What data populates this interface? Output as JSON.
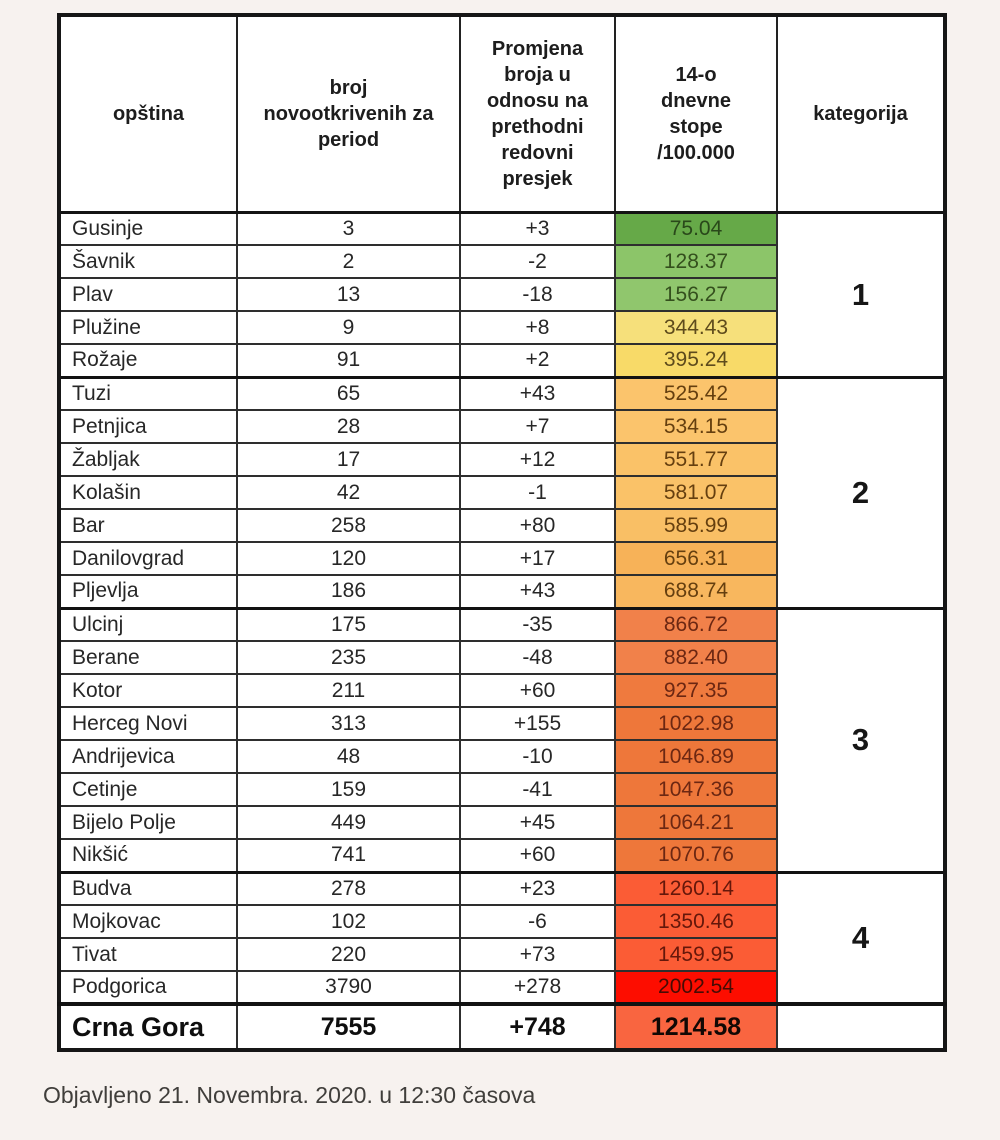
{
  "page": {
    "background": "#f7f2ef"
  },
  "chart_data": {
    "type": "table",
    "columns": [
      "opština",
      "broj\nnovootkrivenih za\nperiod",
      "Promjena\nbroja u\nodnosu na\nprethodni\nredovni\npresjek",
      "14-o\ndnevne\nstope\n/100.000",
      "kategorija"
    ],
    "groups": [
      {
        "kategorija": "1",
        "rows": [
          {
            "opstina": "Gusinje",
            "broj": "3",
            "promjena": "+3",
            "stopa": "75.04",
            "stopa_bg": "#66a948",
            "stopa_fg": "#29481a"
          },
          {
            "opstina": "Šavnik",
            "broj": "2",
            "promjena": "-2",
            "stopa": "128.37",
            "stopa_bg": "#8cc569",
            "stopa_fg": "#344f1d"
          },
          {
            "opstina": "Plav",
            "broj": "13",
            "promjena": "-18",
            "stopa": "156.27",
            "stopa_bg": "#90c66d",
            "stopa_fg": "#344f1d"
          },
          {
            "opstina": "Plužine",
            "broj": "9",
            "promjena": "+8",
            "stopa": "344.43",
            "stopa_bg": "#f6e07b",
            "stopa_fg": "#5e4b1c"
          },
          {
            "opstina": "Rožaje",
            "broj": "91",
            "promjena": "+2",
            "stopa": "395.24",
            "stopa_bg": "#f8da68",
            "stopa_fg": "#5e4b1c"
          }
        ]
      },
      {
        "kategorija": "2",
        "rows": [
          {
            "opstina": "Tuzi",
            "broj": "65",
            "promjena": "+43",
            "stopa": "525.42",
            "stopa_bg": "#fbc46c",
            "stopa_fg": "#653f0f"
          },
          {
            "opstina": "Petnjica",
            "broj": "28",
            "promjena": "+7",
            "stopa": "534.15",
            "stopa_bg": "#fbc46c",
            "stopa_fg": "#653f0f"
          },
          {
            "opstina": "Žabljak",
            "broj": "17",
            "promjena": "+12",
            "stopa": "551.77",
            "stopa_bg": "#fac268",
            "stopa_fg": "#653f0f"
          },
          {
            "opstina": "Kolašin",
            "broj": "42",
            "promjena": "-1",
            "stopa": "581.07",
            "stopa_bg": "#fac268",
            "stopa_fg": "#653f0f"
          },
          {
            "opstina": "Bar",
            "broj": "258",
            "promjena": "+80",
            "stopa": "585.99",
            "stopa_bg": "#f9bf65",
            "stopa_fg": "#653f0f"
          },
          {
            "opstina": "Danilovgrad",
            "broj": "120",
            "promjena": "+17",
            "stopa": "656.31",
            "stopa_bg": "#f7b258",
            "stopa_fg": "#653f0f"
          },
          {
            "opstina": "Pljevlja",
            "broj": "186",
            "promjena": "+43",
            "stopa": "688.74",
            "stopa_bg": "#f8b75e",
            "stopa_fg": "#653f0f"
          }
        ]
      },
      {
        "kategorija": "3",
        "rows": [
          {
            "opstina": "Ulcinj",
            "broj": "175",
            "promjena": "-35",
            "stopa": "866.72",
            "stopa_bg": "#f1814a",
            "stopa_fg": "#6c2712"
          },
          {
            "opstina": "Berane",
            "broj": "235",
            "promjena": "-48",
            "stopa": "882.40",
            "stopa_bg": "#f1814a",
            "stopa_fg": "#6c2712"
          },
          {
            "opstina": "Kotor",
            "broj": "211",
            "promjena": "+60",
            "stopa": "927.35",
            "stopa_bg": "#ef7a3e",
            "stopa_fg": "#6c2712"
          },
          {
            "opstina": "Herceg Novi",
            "broj": "313",
            "promjena": "+155",
            "stopa": "1022.98",
            "stopa_bg": "#ee773a",
            "stopa_fg": "#6c2712"
          },
          {
            "opstina": "Andrijevica",
            "broj": "48",
            "promjena": "-10",
            "stopa": "1046.89",
            "stopa_bg": "#ee773a",
            "stopa_fg": "#6c2712"
          },
          {
            "opstina": "Cetinje",
            "broj": "159",
            "promjena": "-41",
            "stopa": "1047.36",
            "stopa_bg": "#ee773a",
            "stopa_fg": "#6c2712"
          },
          {
            "opstina": "Bijelo Polje",
            "broj": "449",
            "promjena": "+45",
            "stopa": "1064.21",
            "stopa_bg": "#ee773a",
            "stopa_fg": "#6c2712"
          },
          {
            "opstina": "Nikšić",
            "broj": "741",
            "promjena": "+60",
            "stopa": "1070.76",
            "stopa_bg": "#ee773a",
            "stopa_fg": "#6c2712"
          }
        ]
      },
      {
        "kategorija": "4",
        "rows": [
          {
            "opstina": "Budva",
            "broj": "278",
            "promjena": "+23",
            "stopa": "1260.14",
            "stopa_bg": "#fb5c35",
            "stopa_fg": "#65170a"
          },
          {
            "opstina": "Mojkovac",
            "broj": "102",
            "promjena": "-6",
            "stopa": "1350.46",
            "stopa_bg": "#fb5c35",
            "stopa_fg": "#65170a"
          },
          {
            "opstina": "Tivat",
            "broj": "220",
            "promjena": "+73",
            "stopa": "1459.95",
            "stopa_bg": "#fb5c35",
            "stopa_fg": "#65170a"
          },
          {
            "opstina": "Podgorica",
            "broj": "3790",
            "promjena": "+278",
            "stopa": "2002.54",
            "stopa_bg": "#fd0d00",
            "stopa_fg": "#470b04"
          }
        ]
      }
    ],
    "total": {
      "opstina": "Crna Gora",
      "broj": "7555",
      "promjena": "+748",
      "stopa": "1214.58",
      "stopa_bg": "#f96540",
      "stopa_fg": "#120804",
      "kategorija": ""
    }
  },
  "footer": {
    "text": "Objavljeno 21. Novembra. 2020. u 12:30 časova"
  }
}
